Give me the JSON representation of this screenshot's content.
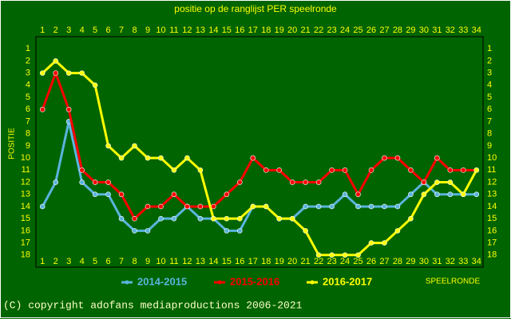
{
  "chart_data": {
    "type": "line",
    "title": "positie op de ranglijst PER speelronde",
    "ylabel": "POSITIE",
    "xlabel": "SPEELRONDE",
    "x": [
      1,
      2,
      3,
      4,
      5,
      6,
      7,
      8,
      9,
      10,
      11,
      12,
      13,
      14,
      15,
      16,
      17,
      18,
      19,
      20,
      21,
      22,
      23,
      24,
      25,
      26,
      27,
      28,
      29,
      30,
      31,
      32,
      33,
      34
    ],
    "xlim": [
      0.5,
      34.5
    ],
    "xticks": [
      1,
      2,
      3,
      4,
      5,
      6,
      7,
      8,
      9,
      10,
      11,
      12,
      13,
      14,
      15,
      16,
      17,
      18,
      19,
      20,
      21,
      22,
      23,
      24,
      25,
      26,
      27,
      28,
      29,
      30,
      31,
      32,
      33,
      34
    ],
    "ylim": [
      19,
      0
    ],
    "yticks": [
      1,
      2,
      3,
      4,
      5,
      6,
      7,
      8,
      9,
      10,
      11,
      12,
      13,
      14,
      15,
      16,
      17,
      18
    ],
    "series": [
      {
        "name": "2014-2015",
        "color": "#5ab4dc",
        "values": [
          14,
          12,
          7,
          12,
          13,
          13,
          15,
          16,
          16,
          15,
          15,
          14,
          15,
          15,
          16,
          16,
          14,
          14,
          15,
          15,
          14,
          14,
          14,
          13,
          14,
          14,
          14,
          14,
          13,
          12,
          13,
          13,
          13,
          13
        ]
      },
      {
        "name": "2015-2016",
        "color": "#ff0000",
        "values": [
          6,
          3,
          6,
          11,
          12,
          12,
          13,
          15,
          14,
          14,
          13,
          14,
          14,
          14,
          13,
          12,
          10,
          11,
          11,
          12,
          12,
          12,
          11,
          11,
          13,
          11,
          10,
          10,
          11,
          12,
          10,
          11,
          11,
          11
        ]
      },
      {
        "name": "2016-2017",
        "color": "#ffff00",
        "values": [
          3,
          2,
          3,
          3,
          4,
          9,
          10,
          9,
          10,
          10,
          11,
          10,
          11,
          15,
          15,
          15,
          14,
          14,
          15,
          15,
          16,
          18,
          18,
          18,
          18,
          17,
          17,
          16,
          15,
          13,
          12,
          12,
          13,
          11
        ]
      }
    ],
    "footer": "(C) copyright adofans mediaproductions 2006-2021"
  }
}
